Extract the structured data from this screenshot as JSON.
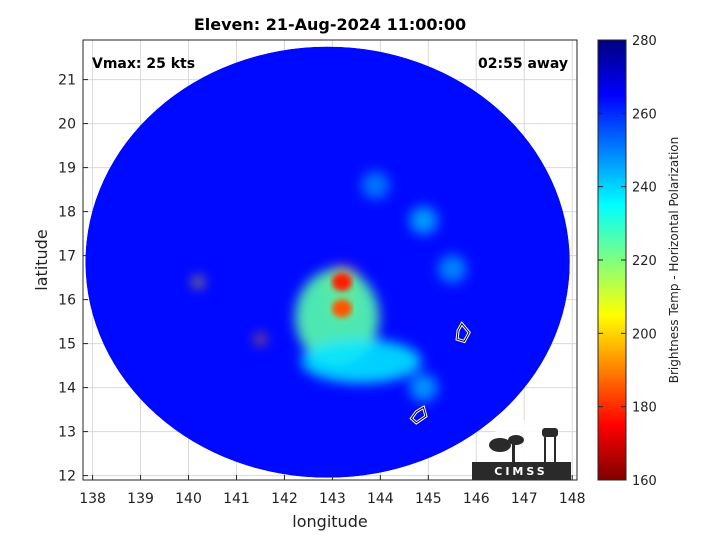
{
  "chart_data": {
    "type": "heatmap",
    "title": "Eleven: 21-Aug-2024 11:00:00",
    "xlabel": "longitude",
    "ylabel": "latitude",
    "xlim": [
      137.8,
      148.1
    ],
    "ylim": [
      11.9,
      21.9
    ],
    "xticks": [
      138,
      139,
      140,
      141,
      142,
      143,
      144,
      145,
      146,
      147,
      148
    ],
    "yticks": [
      12,
      13,
      14,
      15,
      16,
      17,
      18,
      19,
      20,
      21
    ],
    "grid": true,
    "annotations": {
      "vmax": "Vmax: 25 kts",
      "time_away": "02:55 away"
    },
    "colorbar": {
      "label": "Brightness Temp - Horizontal Polarization",
      "range": [
        160,
        280
      ],
      "ticks": [
        160,
        180,
        200,
        220,
        240,
        260,
        280
      ],
      "colors": [
        "#800000",
        "#ff0000",
        "#ff8000",
        "#ffff00",
        "#80ff80",
        "#00ffff",
        "#0080ff",
        "#0000ff",
        "#000080"
      ]
    },
    "swath": {
      "center_lon": 142.9,
      "center_lat": 16.85,
      "radius_lon": 5.05,
      "radius_lat": 4.9
    },
    "features": [
      {
        "name": "core-peak",
        "lon": 143.2,
        "lat": 16.4,
        "temp": 178
      },
      {
        "name": "core-south",
        "lon": 143.2,
        "lat": 15.8,
        "temp": 185
      },
      {
        "name": "warm-zone",
        "lon": 143.1,
        "lat": 15.6,
        "temp": 225
      },
      {
        "name": "band-south",
        "lon": 143.6,
        "lat": 14.6,
        "temp": 238
      },
      {
        "name": "spot-west",
        "lon": 140.2,
        "lat": 16.4,
        "temp": 200
      },
      {
        "name": "spot-sw",
        "lon": 141.5,
        "lat": 15.1,
        "temp": 190
      },
      {
        "name": "cell-ne1",
        "lon": 144.9,
        "lat": 17.8,
        "temp": 245
      },
      {
        "name": "cell-ne2",
        "lon": 145.5,
        "lat": 16.7,
        "temp": 248
      },
      {
        "name": "cell-se",
        "lon": 144.9,
        "lat": 14.0,
        "temp": 246
      },
      {
        "name": "cell-n",
        "lon": 143.9,
        "lat": 18.6,
        "temp": 250
      }
    ],
    "background_temp": 264,
    "islands": [
      {
        "name": "island-east",
        "points": [
          [
            145.7,
            15.45
          ],
          [
            145.85,
            15.25
          ],
          [
            145.75,
            15.05
          ],
          [
            145.6,
            15.1
          ],
          [
            145.62,
            15.3
          ]
        ]
      },
      {
        "name": "island-southeast",
        "points": [
          [
            144.9,
            13.55
          ],
          [
            144.95,
            13.35
          ],
          [
            144.75,
            13.2
          ],
          [
            144.65,
            13.3
          ],
          [
            144.75,
            13.45
          ]
        ]
      }
    ]
  },
  "logo": {
    "text": "CIMSS"
  }
}
